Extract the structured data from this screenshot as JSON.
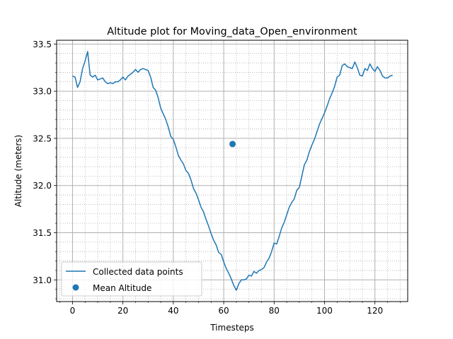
{
  "chart_data": {
    "type": "line",
    "title": "Altitude plot for Moving_data_Open_environment",
    "xlabel": "Timesteps",
    "ylabel": "Altitude (meters)",
    "xlim": [
      -6.3,
      133.0
    ],
    "ylim": [
      30.77,
      33.54
    ],
    "x_ticks": [
      0,
      20,
      40,
      60,
      80,
      100,
      120
    ],
    "x_tick_labels": [
      "0",
      "20",
      "40",
      "60",
      "80",
      "100",
      "120"
    ],
    "y_ticks": [
      31.0,
      31.5,
      32.0,
      32.5,
      33.0,
      33.5
    ],
    "y_tick_labels": [
      "31.0",
      "31.5",
      "32.0",
      "32.5",
      "33.0",
      "33.5"
    ],
    "x_minor_step": 5,
    "y_minor_step": 0.1,
    "grid": true,
    "minor_grid": true,
    "legend_position": "bottom-left",
    "series": [
      {
        "name": "Collected data points",
        "kind": "line",
        "color": "#1f77b4",
        "x": [
          0,
          1,
          2,
          3,
          4,
          5,
          6,
          7,
          8,
          9,
          10,
          11,
          12,
          13,
          14,
          15,
          16,
          17,
          18,
          19,
          20,
          21,
          22,
          23,
          24,
          25,
          26,
          27,
          28,
          29,
          30,
          31,
          32,
          33,
          34,
          35,
          36,
          37,
          38,
          39,
          40,
          41,
          42,
          43,
          44,
          45,
          46,
          47,
          48,
          49,
          50,
          51,
          52,
          53,
          54,
          55,
          56,
          57,
          58,
          59,
          60,
          61,
          62,
          63,
          64,
          65,
          66,
          67,
          68,
          69,
          70,
          71,
          72,
          73,
          74,
          75,
          76,
          77,
          78,
          79,
          80,
          81,
          82,
          83,
          84,
          85,
          86,
          87,
          88,
          89,
          90,
          91,
          92,
          93,
          94,
          95,
          96,
          97,
          98,
          99,
          100,
          101,
          102,
          103,
          104,
          105,
          106,
          107,
          108,
          109,
          110,
          111,
          112,
          113,
          114,
          115,
          116,
          117,
          118,
          119,
          120,
          121,
          122,
          123,
          124,
          125,
          126,
          127
        ],
        "values": [
          33.16,
          33.15,
          33.04,
          33.1,
          33.24,
          33.32,
          33.42,
          33.17,
          33.15,
          33.17,
          33.12,
          33.13,
          33.14,
          33.1,
          33.08,
          33.09,
          33.08,
          33.1,
          33.1,
          33.12,
          33.15,
          33.12,
          33.16,
          33.18,
          33.2,
          33.23,
          33.2,
          33.23,
          33.24,
          33.23,
          33.22,
          33.15,
          33.04,
          33.01,
          32.93,
          32.82,
          32.76,
          32.7,
          32.62,
          32.52,
          32.49,
          32.41,
          32.32,
          32.27,
          32.23,
          32.16,
          32.13,
          32.06,
          31.97,
          31.92,
          31.85,
          31.77,
          31.72,
          31.64,
          31.57,
          31.49,
          31.42,
          31.37,
          31.29,
          31.27,
          31.19,
          31.12,
          31.07,
          31.01,
          30.94,
          30.89,
          30.96,
          31.0,
          31.0,
          31.01,
          31.05,
          31.04,
          31.09,
          31.07,
          31.1,
          31.11,
          31.13,
          31.19,
          31.23,
          31.3,
          31.39,
          31.38,
          31.46,
          31.55,
          31.61,
          31.69,
          31.77,
          31.82,
          31.86,
          31.95,
          31.98,
          32.1,
          32.22,
          32.27,
          32.36,
          32.43,
          32.49,
          32.57,
          32.65,
          32.71,
          32.77,
          32.84,
          32.92,
          32.98,
          33.05,
          33.15,
          33.17,
          33.27,
          33.29,
          33.26,
          33.25,
          33.24,
          33.31,
          33.25,
          33.17,
          33.16,
          33.24,
          33.22,
          33.29,
          33.24,
          33.21,
          33.26,
          33.22,
          33.16,
          33.14,
          33.14,
          33.16,
          33.17
        ]
      },
      {
        "name": "Mean Altitude",
        "kind": "scatter",
        "color": "#1f77b4",
        "x": [
          63.5
        ],
        "values": [
          32.44
        ]
      }
    ]
  }
}
